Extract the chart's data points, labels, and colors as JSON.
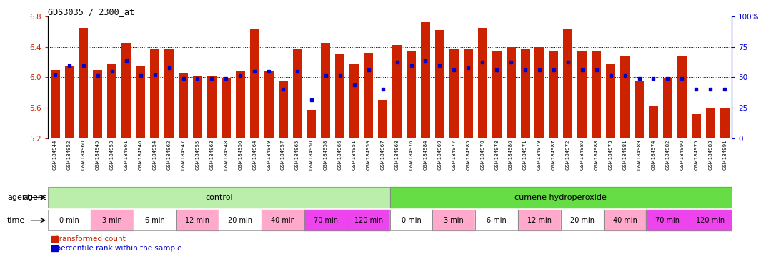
{
  "title": "GDS3035 / 2300_at",
  "ylim_left": [
    5.2,
    6.8
  ],
  "yticks_left": [
    5.2,
    5.6,
    6.0,
    6.4,
    6.8
  ],
  "ylim_right": [
    0,
    100
  ],
  "yticks_right": [
    0,
    25,
    50,
    75,
    100
  ],
  "bar_color": "#cc2200",
  "dot_color": "#0000cc",
  "gsm_labels": [
    "GSM184944",
    "GSM184952",
    "GSM184960",
    "GSM184945",
    "GSM184953",
    "GSM184961",
    "GSM184946",
    "GSM184954",
    "GSM184962",
    "GSM184947",
    "GSM184955",
    "GSM184963",
    "GSM184948",
    "GSM184956",
    "GSM184964",
    "GSM184949",
    "GSM184957",
    "GSM184965",
    "GSM184950",
    "GSM184958",
    "GSM184966",
    "GSM184951",
    "GSM184959",
    "GSM184967",
    "GSM184968",
    "GSM184976",
    "GSM184984",
    "GSM184969",
    "GSM184977",
    "GSM184985",
    "GSM184970",
    "GSM184978",
    "GSM184986",
    "GSM184971",
    "GSM184979",
    "GSM184987",
    "GSM184972",
    "GSM184980",
    "GSM184988",
    "GSM184973",
    "GSM184981",
    "GSM184989",
    "GSM184974",
    "GSM184982",
    "GSM184990",
    "GSM184975",
    "GSM184983",
    "GSM184991"
  ],
  "bar_values": [
    6.1,
    6.15,
    6.65,
    6.1,
    6.18,
    6.45,
    6.15,
    6.38,
    6.37,
    6.05,
    6.02,
    6.02,
    5.98,
    6.08,
    6.63,
    6.08,
    5.96,
    6.38,
    5.57,
    6.45,
    6.3,
    6.18,
    6.32,
    5.7,
    6.42,
    6.35,
    6.72,
    6.62,
    6.38,
    6.37,
    6.65,
    6.35,
    6.4,
    6.38,
    6.4,
    6.35,
    6.63,
    6.35,
    6.35,
    6.18,
    6.28,
    5.95,
    5.62,
    5.98,
    6.28,
    5.52,
    5.6,
    5.6
  ],
  "dot_values": [
    6.03,
    6.15,
    6.15,
    6.02,
    6.08,
    6.22,
    6.02,
    6.03,
    6.12,
    5.98,
    5.98,
    5.98,
    5.98,
    6.02,
    6.08,
    6.08,
    5.84,
    6.08,
    5.7,
    6.02,
    6.02,
    5.9,
    6.1,
    5.84,
    6.2,
    6.15,
    6.22,
    6.15,
    6.1,
    6.12,
    6.2,
    6.1,
    6.2,
    6.1,
    6.1,
    6.1,
    6.2,
    6.1,
    6.1,
    6.02,
    6.02,
    5.98,
    5.98,
    5.98,
    5.98,
    5.84,
    5.84,
    5.84
  ],
  "time_group_defs": [
    {
      "label": "0 min",
      "count": 3,
      "color": "#ffffff"
    },
    {
      "label": "3 min",
      "count": 3,
      "color": "#ffaacc"
    },
    {
      "label": "6 min",
      "count": 3,
      "color": "#ffffff"
    },
    {
      "label": "12 min",
      "count": 3,
      "color": "#ffaacc"
    },
    {
      "label": "20 min",
      "count": 3,
      "color": "#ffffff"
    },
    {
      "label": "40 min",
      "count": 3,
      "color": "#ffaacc"
    },
    {
      "label": "70 min",
      "count": 3,
      "color": "#ee44ee"
    },
    {
      "label": "120 min",
      "count": 3,
      "color": "#ee44ee"
    },
    {
      "label": "0 min",
      "count": 3,
      "color": "#ffffff"
    },
    {
      "label": "3 min",
      "count": 3,
      "color": "#ffaacc"
    },
    {
      "label": "6 min",
      "count": 3,
      "color": "#ffffff"
    },
    {
      "label": "12 min",
      "count": 3,
      "color": "#ffaacc"
    },
    {
      "label": "20 min",
      "count": 3,
      "color": "#ffffff"
    },
    {
      "label": "40 min",
      "count": 3,
      "color": "#ffaacc"
    },
    {
      "label": "70 min",
      "count": 3,
      "color": "#ee44ee"
    },
    {
      "label": "120 min",
      "count": 3,
      "color": "#ee44ee"
    }
  ],
  "agent_groups": [
    {
      "label": "control",
      "count": 24,
      "color": "#bbeeaa"
    },
    {
      "label": "cumene hydroperoxide",
      "count": 24,
      "color": "#66dd44"
    }
  ],
  "agent_label": "agent",
  "time_label": "time",
  "legend_bar": "transformed count",
  "legend_dot": "percentile rank within the sample",
  "bar_width": 0.65,
  "axis_left_color": "#cc2200",
  "axis_right_color": "#0000cc",
  "ybase": 5.2
}
